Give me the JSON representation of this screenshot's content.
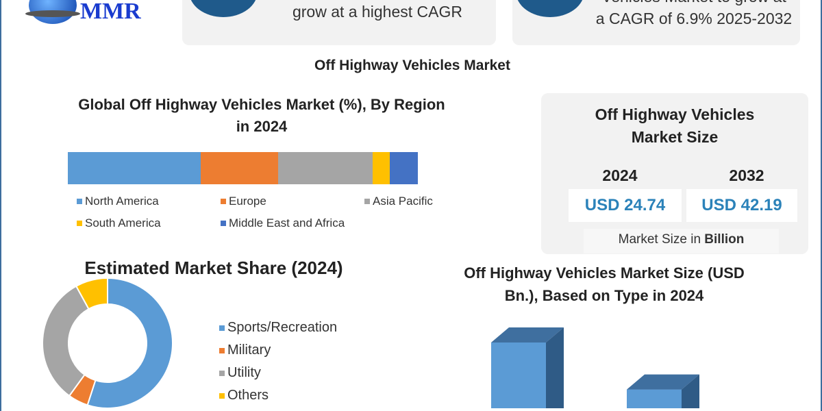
{
  "logo": {
    "text": "MMR"
  },
  "cards": [
    {
      "line": "grow at a highest CAGR",
      "icon": "pen-icon"
    },
    {
      "line_partial": "Vehicles Market to grow at",
      "line": "a CAGR of 6.9% 2025-2032",
      "icon": "flame-icon"
    }
  ],
  "main_title": "Off Highway Vehicles Market",
  "market_size": {
    "title1": "Off Highway Vehicles",
    "title2": "Market Size",
    "years": [
      "2024",
      "2032"
    ],
    "values": [
      "USD 24.74",
      "USD 42.19"
    ],
    "unit_prefix": "Market Size in ",
    "unit_bold": "Billion"
  },
  "chart_data": [
    {
      "type": "bar",
      "stacked": true,
      "orientation": "horizontal",
      "title1": "Global Off Highway Vehicles Market (%), By Region",
      "title2": "in 2024",
      "series": [
        {
          "name": "North America",
          "value": 38,
          "color": "#5b9bd5"
        },
        {
          "name": "Europe",
          "value": 22,
          "color": "#ed7d31"
        },
        {
          "name": "Asia Pacific",
          "value": 27,
          "color": "#a5a5a5"
        },
        {
          "name": "South America",
          "value": 5,
          "color": "#ffc000"
        },
        {
          "name": "Middle East and Africa",
          "value": 8,
          "color": "#4472c4"
        }
      ],
      "legend": "bottom"
    },
    {
      "type": "pie",
      "donut": true,
      "title": "Estimated Market Share (2024)",
      "slices": [
        {
          "name": "Sports/Recreation",
          "value": 55,
          "color": "#5b9bd5"
        },
        {
          "name": "Military",
          "value": 5,
          "color": "#ed7d31"
        },
        {
          "name": "Utility",
          "value": 32,
          "color": "#a5a5a5"
        },
        {
          "name": "Others",
          "value": 8,
          "color": "#ffc000"
        }
      ],
      "legend": "right"
    },
    {
      "type": "bar",
      "style": "3d",
      "title1": "Off Highway Vehicles Market Size (USD",
      "title2": "Bn.), Based on Type in 2024",
      "values": [
        14,
        4
      ],
      "color": "#5b9bd5"
    }
  ]
}
